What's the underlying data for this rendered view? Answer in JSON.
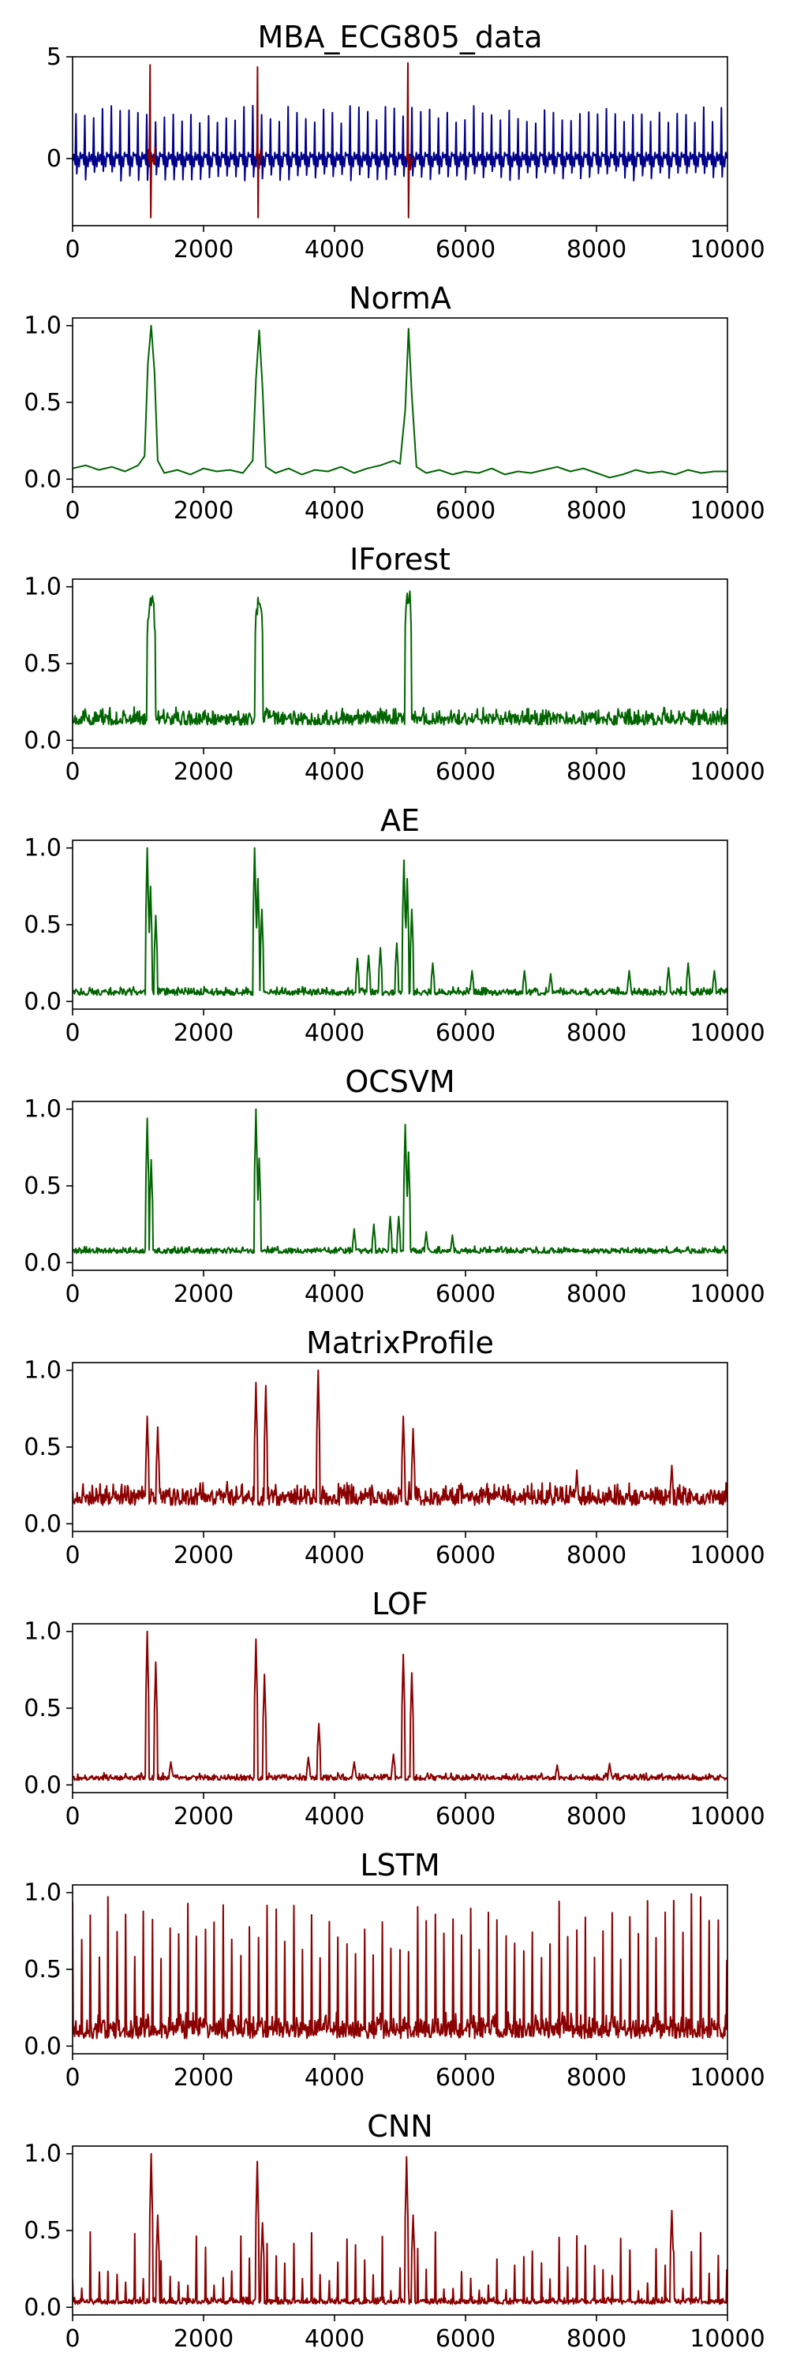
{
  "colors": {
    "data_signal": "#00008b",
    "anomaly": "#8b0000",
    "good": "#006400",
    "poor": "#8b0000"
  },
  "chart_data": [
    {
      "type": "line",
      "title": "MBA_ECG805_data",
      "xlim": [
        0,
        10000
      ],
      "ylim": [
        -3.3,
        5
      ],
      "xticks": [
        "0",
        "2000",
        "4000",
        "6000",
        "8000",
        "10000"
      ],
      "yticks": [
        {
          "value": 5,
          "label": "5"
        },
        {
          "value": 0,
          "label": "0"
        }
      ],
      "grid": false,
      "series": [
        {
          "kind": "ecg",
          "color": "#00008b",
          "beat_period": 135,
          "r_peak_range": [
            1.7,
            2.6
          ],
          "s_trough_range": [
            -0.6,
            -1.1
          ],
          "baseline": 0
        },
        {
          "kind": "anomalies",
          "color": "#8b0000",
          "segments": [
            {
              "x_start": 1150,
              "x_end": 1260,
              "max": 4.6,
              "min": -2.9
            },
            {
              "x_start": 2800,
              "x_end": 2880,
              "max": 4.5,
              "min": -2.9
            },
            {
              "x_start": 5090,
              "x_end": 5190,
              "max": 4.7,
              "min": -2.9
            }
          ]
        }
      ]
    },
    {
      "type": "line",
      "title": "NormA",
      "color": "#006400",
      "xlim": [
        0,
        10000
      ],
      "ylim": [
        -0.05,
        1.05
      ],
      "xticks": [
        "0",
        "2000",
        "4000",
        "6000",
        "8000",
        "10000"
      ],
      "yticks": [
        {
          "value": 1.0,
          "label": "1.0"
        },
        {
          "value": 0.5,
          "label": "0.5"
        },
        {
          "value": 0.0,
          "label": "0.0"
        }
      ],
      "x": [
        0,
        200,
        400,
        600,
        800,
        1000,
        1100,
        1150,
        1200,
        1250,
        1300,
        1400,
        1600,
        1800,
        2000,
        2200,
        2400,
        2600,
        2750,
        2800,
        2850,
        2900,
        2950,
        3100,
        3300,
        3500,
        3700,
        3900,
        4100,
        4300,
        4500,
        4700,
        4900,
        5000,
        5080,
        5130,
        5180,
        5250,
        5400,
        5600,
        5800,
        6000,
        6200,
        6400,
        6600,
        6800,
        7000,
        7200,
        7400,
        7600,
        7800,
        8000,
        8200,
        8400,
        8600,
        8800,
        9000,
        9200,
        9400,
        9600,
        9800,
        10000
      ],
      "y": [
        0.07,
        0.09,
        0.06,
        0.08,
        0.05,
        0.09,
        0.15,
        0.75,
        1.0,
        0.7,
        0.12,
        0.04,
        0.06,
        0.03,
        0.07,
        0.05,
        0.06,
        0.04,
        0.12,
        0.65,
        0.97,
        0.6,
        0.08,
        0.04,
        0.07,
        0.03,
        0.06,
        0.05,
        0.08,
        0.04,
        0.07,
        0.09,
        0.12,
        0.1,
        0.45,
        0.98,
        0.55,
        0.08,
        0.04,
        0.06,
        0.03,
        0.05,
        0.04,
        0.07,
        0.03,
        0.05,
        0.04,
        0.06,
        0.08,
        0.05,
        0.07,
        0.04,
        0.01,
        0.03,
        0.06,
        0.04,
        0.05,
        0.03,
        0.06,
        0.04,
        0.05,
        0.05
      ]
    },
    {
      "type": "line",
      "title": "IForest",
      "color": "#006400",
      "xlim": [
        0,
        10000
      ],
      "ylim": [
        -0.05,
        1.05
      ],
      "xticks": [
        "0",
        "2000",
        "4000",
        "6000",
        "8000",
        "10000"
      ],
      "yticks": [
        {
          "value": 1.0,
          "label": "1.0"
        },
        {
          "value": 0.5,
          "label": "0.5"
        },
        {
          "value": 0.0,
          "label": "0.0"
        }
      ],
      "noise": {
        "base": 0.1,
        "amplitude": 0.12,
        "density": 1
      },
      "peaks": [
        {
          "x_start": 1140,
          "x_end": 1260,
          "value": 0.95
        },
        {
          "x_start": 2790,
          "x_end": 2900,
          "value": 0.94
        },
        {
          "x_start": 5080,
          "x_end": 5170,
          "value": 1.0
        }
      ]
    },
    {
      "type": "line",
      "title": "AE",
      "color": "#006400",
      "xlim": [
        0,
        10000
      ],
      "ylim": [
        -0.05,
        1.05
      ],
      "xticks": [
        "0",
        "2000",
        "4000",
        "6000",
        "8000",
        "10000"
      ],
      "yticks": [
        {
          "value": 1.0,
          "label": "1.0"
        },
        {
          "value": 0.5,
          "label": "0.5"
        },
        {
          "value": 0.0,
          "label": "0.0"
        }
      ],
      "noise": {
        "base": 0.04,
        "amplitude": 0.06,
        "density": 1
      },
      "spikes": [
        {
          "x": 1140,
          "value": 1.0
        },
        {
          "x": 1190,
          "value": 0.75
        },
        {
          "x": 1270,
          "value": 0.56
        },
        {
          "x": 2780,
          "value": 1.0
        },
        {
          "x": 2830,
          "value": 0.8
        },
        {
          "x": 2890,
          "value": 0.6
        },
        {
          "x": 4350,
          "value": 0.28
        },
        {
          "x": 4520,
          "value": 0.3
        },
        {
          "x": 4700,
          "value": 0.35
        },
        {
          "x": 4950,
          "value": 0.38
        },
        {
          "x": 5060,
          "value": 0.92
        },
        {
          "x": 5110,
          "value": 0.8
        },
        {
          "x": 5180,
          "value": 0.6
        },
        {
          "x": 5500,
          "value": 0.25
        },
        {
          "x": 6100,
          "value": 0.2
        },
        {
          "x": 6900,
          "value": 0.2
        },
        {
          "x": 7300,
          "value": 0.18
        },
        {
          "x": 8500,
          "value": 0.2
        },
        {
          "x": 9100,
          "value": 0.22
        },
        {
          "x": 9400,
          "value": 0.25
        },
        {
          "x": 9800,
          "value": 0.2
        }
      ]
    },
    {
      "type": "line",
      "title": "OCSVM",
      "color": "#006400",
      "xlim": [
        0,
        10000
      ],
      "ylim": [
        -0.05,
        1.05
      ],
      "xticks": [
        "0",
        "2000",
        "4000",
        "6000",
        "8000",
        "10000"
      ],
      "yticks": [
        {
          "value": 1.0,
          "label": "1.0"
        },
        {
          "value": 0.5,
          "label": "0.5"
        },
        {
          "value": 0.0,
          "label": "0.0"
        }
      ],
      "noise": {
        "base": 0.06,
        "amplitude": 0.05,
        "density": 1
      },
      "spikes": [
        {
          "x": 1140,
          "value": 0.94
        },
        {
          "x": 1200,
          "value": 0.67
        },
        {
          "x": 2800,
          "value": 1.0
        },
        {
          "x": 2850,
          "value": 0.68
        },
        {
          "x": 4300,
          "value": 0.22
        },
        {
          "x": 4600,
          "value": 0.25
        },
        {
          "x": 4850,
          "value": 0.3
        },
        {
          "x": 4980,
          "value": 0.3
        },
        {
          "x": 5080,
          "value": 0.9
        },
        {
          "x": 5130,
          "value": 0.72
        },
        {
          "x": 5400,
          "value": 0.2
        },
        {
          "x": 5800,
          "value": 0.18
        }
      ]
    },
    {
      "type": "line",
      "title": "MatrixProfile",
      "color": "#8b0000",
      "xlim": [
        0,
        10000
      ],
      "ylim": [
        -0.05,
        1.05
      ],
      "xticks": [
        "0",
        "2000",
        "4000",
        "6000",
        "8000",
        "10000"
      ],
      "yticks": [
        {
          "value": 1.0,
          "label": "1.0"
        },
        {
          "value": 0.5,
          "label": "0.5"
        },
        {
          "value": 0.0,
          "label": "0.0"
        }
      ],
      "noise": {
        "base": 0.12,
        "amplitude": 0.16,
        "density": 1
      },
      "spikes": [
        {
          "x": 1140,
          "value": 0.7
        },
        {
          "x": 1300,
          "value": 0.63
        },
        {
          "x": 2800,
          "value": 0.92
        },
        {
          "x": 2950,
          "value": 0.9
        },
        {
          "x": 3750,
          "value": 1.0
        },
        {
          "x": 5050,
          "value": 0.7
        },
        {
          "x": 5200,
          "value": 0.62
        },
        {
          "x": 7700,
          "value": 0.35
        },
        {
          "x": 9150,
          "value": 0.38
        }
      ]
    },
    {
      "type": "line",
      "title": "LOF",
      "color": "#8b0000",
      "xlim": [
        0,
        10000
      ],
      "ylim": [
        -0.05,
        1.05
      ],
      "xticks": [
        "0",
        "2000",
        "4000",
        "6000",
        "8000",
        "10000"
      ],
      "yticks": [
        {
          "value": 1.0,
          "label": "1.0"
        },
        {
          "value": 0.5,
          "label": "0.5"
        },
        {
          "value": 0.0,
          "label": "0.0"
        }
      ],
      "noise": {
        "base": 0.03,
        "amplitude": 0.05,
        "density": 1
      },
      "spikes": [
        {
          "x": 1140,
          "value": 1.0
        },
        {
          "x": 1270,
          "value": 0.8
        },
        {
          "x": 2800,
          "value": 0.95
        },
        {
          "x": 2930,
          "value": 0.72
        },
        {
          "x": 3760,
          "value": 0.4
        },
        {
          "x": 5050,
          "value": 0.85
        },
        {
          "x": 5180,
          "value": 0.73
        },
        {
          "x": 1500,
          "value": 0.15
        },
        {
          "x": 3600,
          "value": 0.18
        },
        {
          "x": 4300,
          "value": 0.15
        },
        {
          "x": 4900,
          "value": 0.2
        },
        {
          "x": 7400,
          "value": 0.13
        },
        {
          "x": 8200,
          "value": 0.14
        }
      ]
    },
    {
      "type": "line",
      "title": "LSTM",
      "color": "#8b0000",
      "xlim": [
        0,
        10000
      ],
      "ylim": [
        -0.05,
        1.05
      ],
      "xticks": [
        "0",
        "2000",
        "4000",
        "6000",
        "8000",
        "10000"
      ],
      "yticks": [
        {
          "value": 1.0,
          "label": "1.0"
        },
        {
          "value": 0.5,
          "label": "0.5"
        },
        {
          "value": 0.0,
          "label": "0.0"
        }
      ],
      "noise": {
        "base": 0.05,
        "amplitude": 0.18,
        "density": 1
      },
      "periodic_spikes": {
        "period": 135,
        "min": 0.55,
        "max": 1.0
      }
    },
    {
      "type": "line",
      "title": "CNN",
      "color": "#8b0000",
      "xlim": [
        0,
        10000
      ],
      "ylim": [
        -0.05,
        1.05
      ],
      "xticks": [
        "0",
        "2000",
        "4000",
        "6000",
        "8000",
        "10000"
      ],
      "yticks": [
        {
          "value": 1.0,
          "label": "1.0"
        },
        {
          "value": 0.5,
          "label": "0.5"
        },
        {
          "value": 0.0,
          "label": "0.0"
        }
      ],
      "noise": {
        "base": 0.02,
        "amplitude": 0.05,
        "density": 1
      },
      "periodic_spikes": {
        "period": 135,
        "min": 0.1,
        "max": 0.5
      },
      "spikes": [
        {
          "x": 1200,
          "value": 1.0
        },
        {
          "x": 1300,
          "value": 0.6
        },
        {
          "x": 2820,
          "value": 0.95
        },
        {
          "x": 2900,
          "value": 0.55
        },
        {
          "x": 5100,
          "value": 0.98
        },
        {
          "x": 5200,
          "value": 0.6
        },
        {
          "x": 9150,
          "value": 0.63
        }
      ]
    }
  ]
}
